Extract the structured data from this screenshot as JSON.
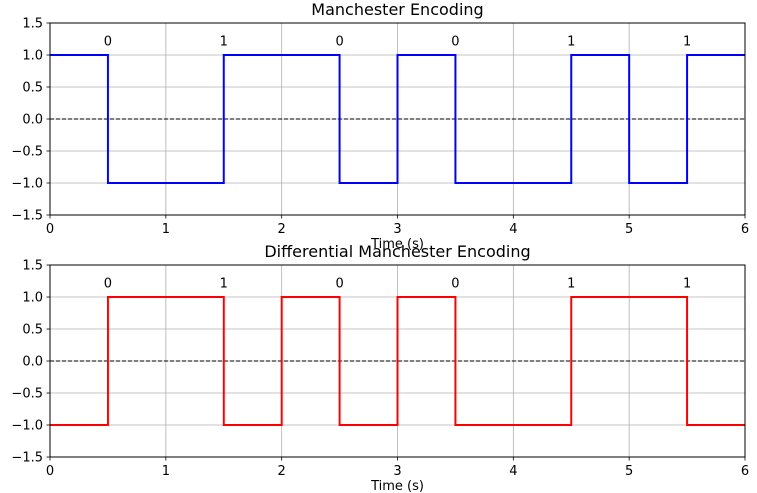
{
  "chart_data": [
    {
      "type": "line",
      "title": "Manchester Encoding",
      "xlabel": "Time (s)",
      "ylabel": "",
      "xlim": [
        0,
        6
      ],
      "ylim": [
        -1.5,
        1.5
      ],
      "xticks": [
        0,
        1,
        2,
        3,
        4,
        5,
        6
      ],
      "yticks": [
        -1.5,
        -1.0,
        -0.5,
        0.0,
        0.5,
        1.0,
        1.5
      ],
      "xtick_labels": [
        "0",
        "1",
        "2",
        "3",
        "4",
        "5",
        "6"
      ],
      "ytick_labels": [
        "−1.5",
        "−1.0",
        "−0.5",
        "0.0",
        "0.5",
        "1.0",
        "1.5"
      ],
      "grid": true,
      "color": "#0000ff",
      "step_x": [
        0,
        0.5,
        0.5,
        1.5,
        1.5,
        2.5,
        2.5,
        3.0,
        3.0,
        3.5,
        3.5,
        4.5,
        4.5,
        5.0,
        5.0,
        5.5,
        5.5,
        6.0
      ],
      "step_y": [
        1,
        1,
        -1,
        -1,
        1,
        1,
        -1,
        -1,
        1,
        1,
        -1,
        -1,
        1,
        1,
        -1,
        -1,
        1,
        1
      ],
      "reference_line": {
        "y": 0,
        "style": "dashed",
        "color": "#000000"
      },
      "bit_labels": [
        {
          "x": 0.5,
          "text": "0"
        },
        {
          "x": 1.5,
          "text": "1"
        },
        {
          "x": 2.5,
          "text": "0"
        },
        {
          "x": 3.5,
          "text": "0"
        },
        {
          "x": 4.5,
          "text": "1"
        },
        {
          "x": 5.5,
          "text": "1"
        }
      ]
    },
    {
      "type": "line",
      "title": "Differential Manchester Encoding",
      "xlabel": "Time (s)",
      "ylabel": "",
      "xlim": [
        0,
        6
      ],
      "ylim": [
        -1.5,
        1.5
      ],
      "xticks": [
        0,
        1,
        2,
        3,
        4,
        5,
        6
      ],
      "yticks": [
        -1.5,
        -1.0,
        -0.5,
        0.0,
        0.5,
        1.0,
        1.5
      ],
      "xtick_labels": [
        "0",
        "1",
        "2",
        "3",
        "4",
        "5",
        "6"
      ],
      "ytick_labels": [
        "−1.5",
        "−1.0",
        "−0.5",
        "0.0",
        "0.5",
        "1.0",
        "1.5"
      ],
      "grid": true,
      "color": "#ff0000",
      "step_x": [
        0,
        0.5,
        0.5,
        1.5,
        1.5,
        2.0,
        2.0,
        2.5,
        2.5,
        3.0,
        3.0,
        3.5,
        3.5,
        4.5,
        4.5,
        5.5,
        5.5,
        6.0
      ],
      "step_y": [
        -1,
        -1,
        1,
        1,
        -1,
        -1,
        1,
        1,
        -1,
        -1,
        1,
        1,
        -1,
        -1,
        1,
        1,
        -1,
        -1
      ],
      "reference_line": {
        "y": 0,
        "style": "dashed",
        "color": "#000000"
      },
      "bit_labels": [
        {
          "x": 0.5,
          "text": "0"
        },
        {
          "x": 1.5,
          "text": "1"
        },
        {
          "x": 2.5,
          "text": "0"
        },
        {
          "x": 3.5,
          "text": "0"
        },
        {
          "x": 4.5,
          "text": "1"
        },
        {
          "x": 5.5,
          "text": "1"
        }
      ]
    }
  ]
}
